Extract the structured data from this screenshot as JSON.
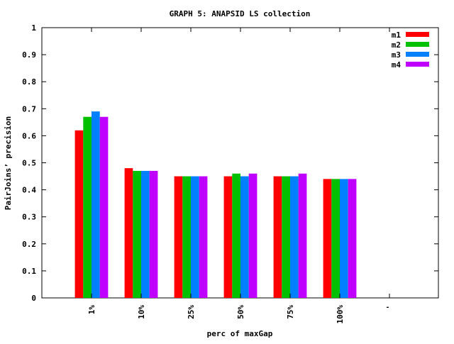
{
  "chart_data": {
    "type": "bar",
    "title": "GRAPH 5: ANAPSID LS collection",
    "xlabel": "perc of maxGap",
    "ylabel": "PairJoins’ precision",
    "categories": [
      "1%",
      "10%",
      "25%",
      "50%",
      "75%",
      "100%",
      "'"
    ],
    "series": [
      {
        "name": "m1",
        "color": "#ff0000",
        "values": [
          0.62,
          0.48,
          0.45,
          0.45,
          0.45,
          0.44,
          null
        ]
      },
      {
        "name": "m2",
        "color": "#00c000",
        "values": [
          0.67,
          0.47,
          0.45,
          0.46,
          0.45,
          0.44,
          null
        ]
      },
      {
        "name": "m3",
        "color": "#0080ff",
        "values": [
          0.69,
          0.47,
          0.45,
          0.45,
          0.45,
          0.44,
          null
        ]
      },
      {
        "name": "m4",
        "color": "#c000ff",
        "values": [
          0.67,
          0.47,
          0.45,
          0.46,
          0.46,
          0.44,
          null
        ]
      }
    ],
    "ylim": [
      0,
      1
    ],
    "yticks": [
      "0",
      "0.1",
      "0.2",
      "0.3",
      "0.4",
      "0.5",
      "0.6",
      "0.7",
      "0.8",
      "0.9",
      "1"
    ],
    "grid": false,
    "legend_position": "top-right"
  }
}
